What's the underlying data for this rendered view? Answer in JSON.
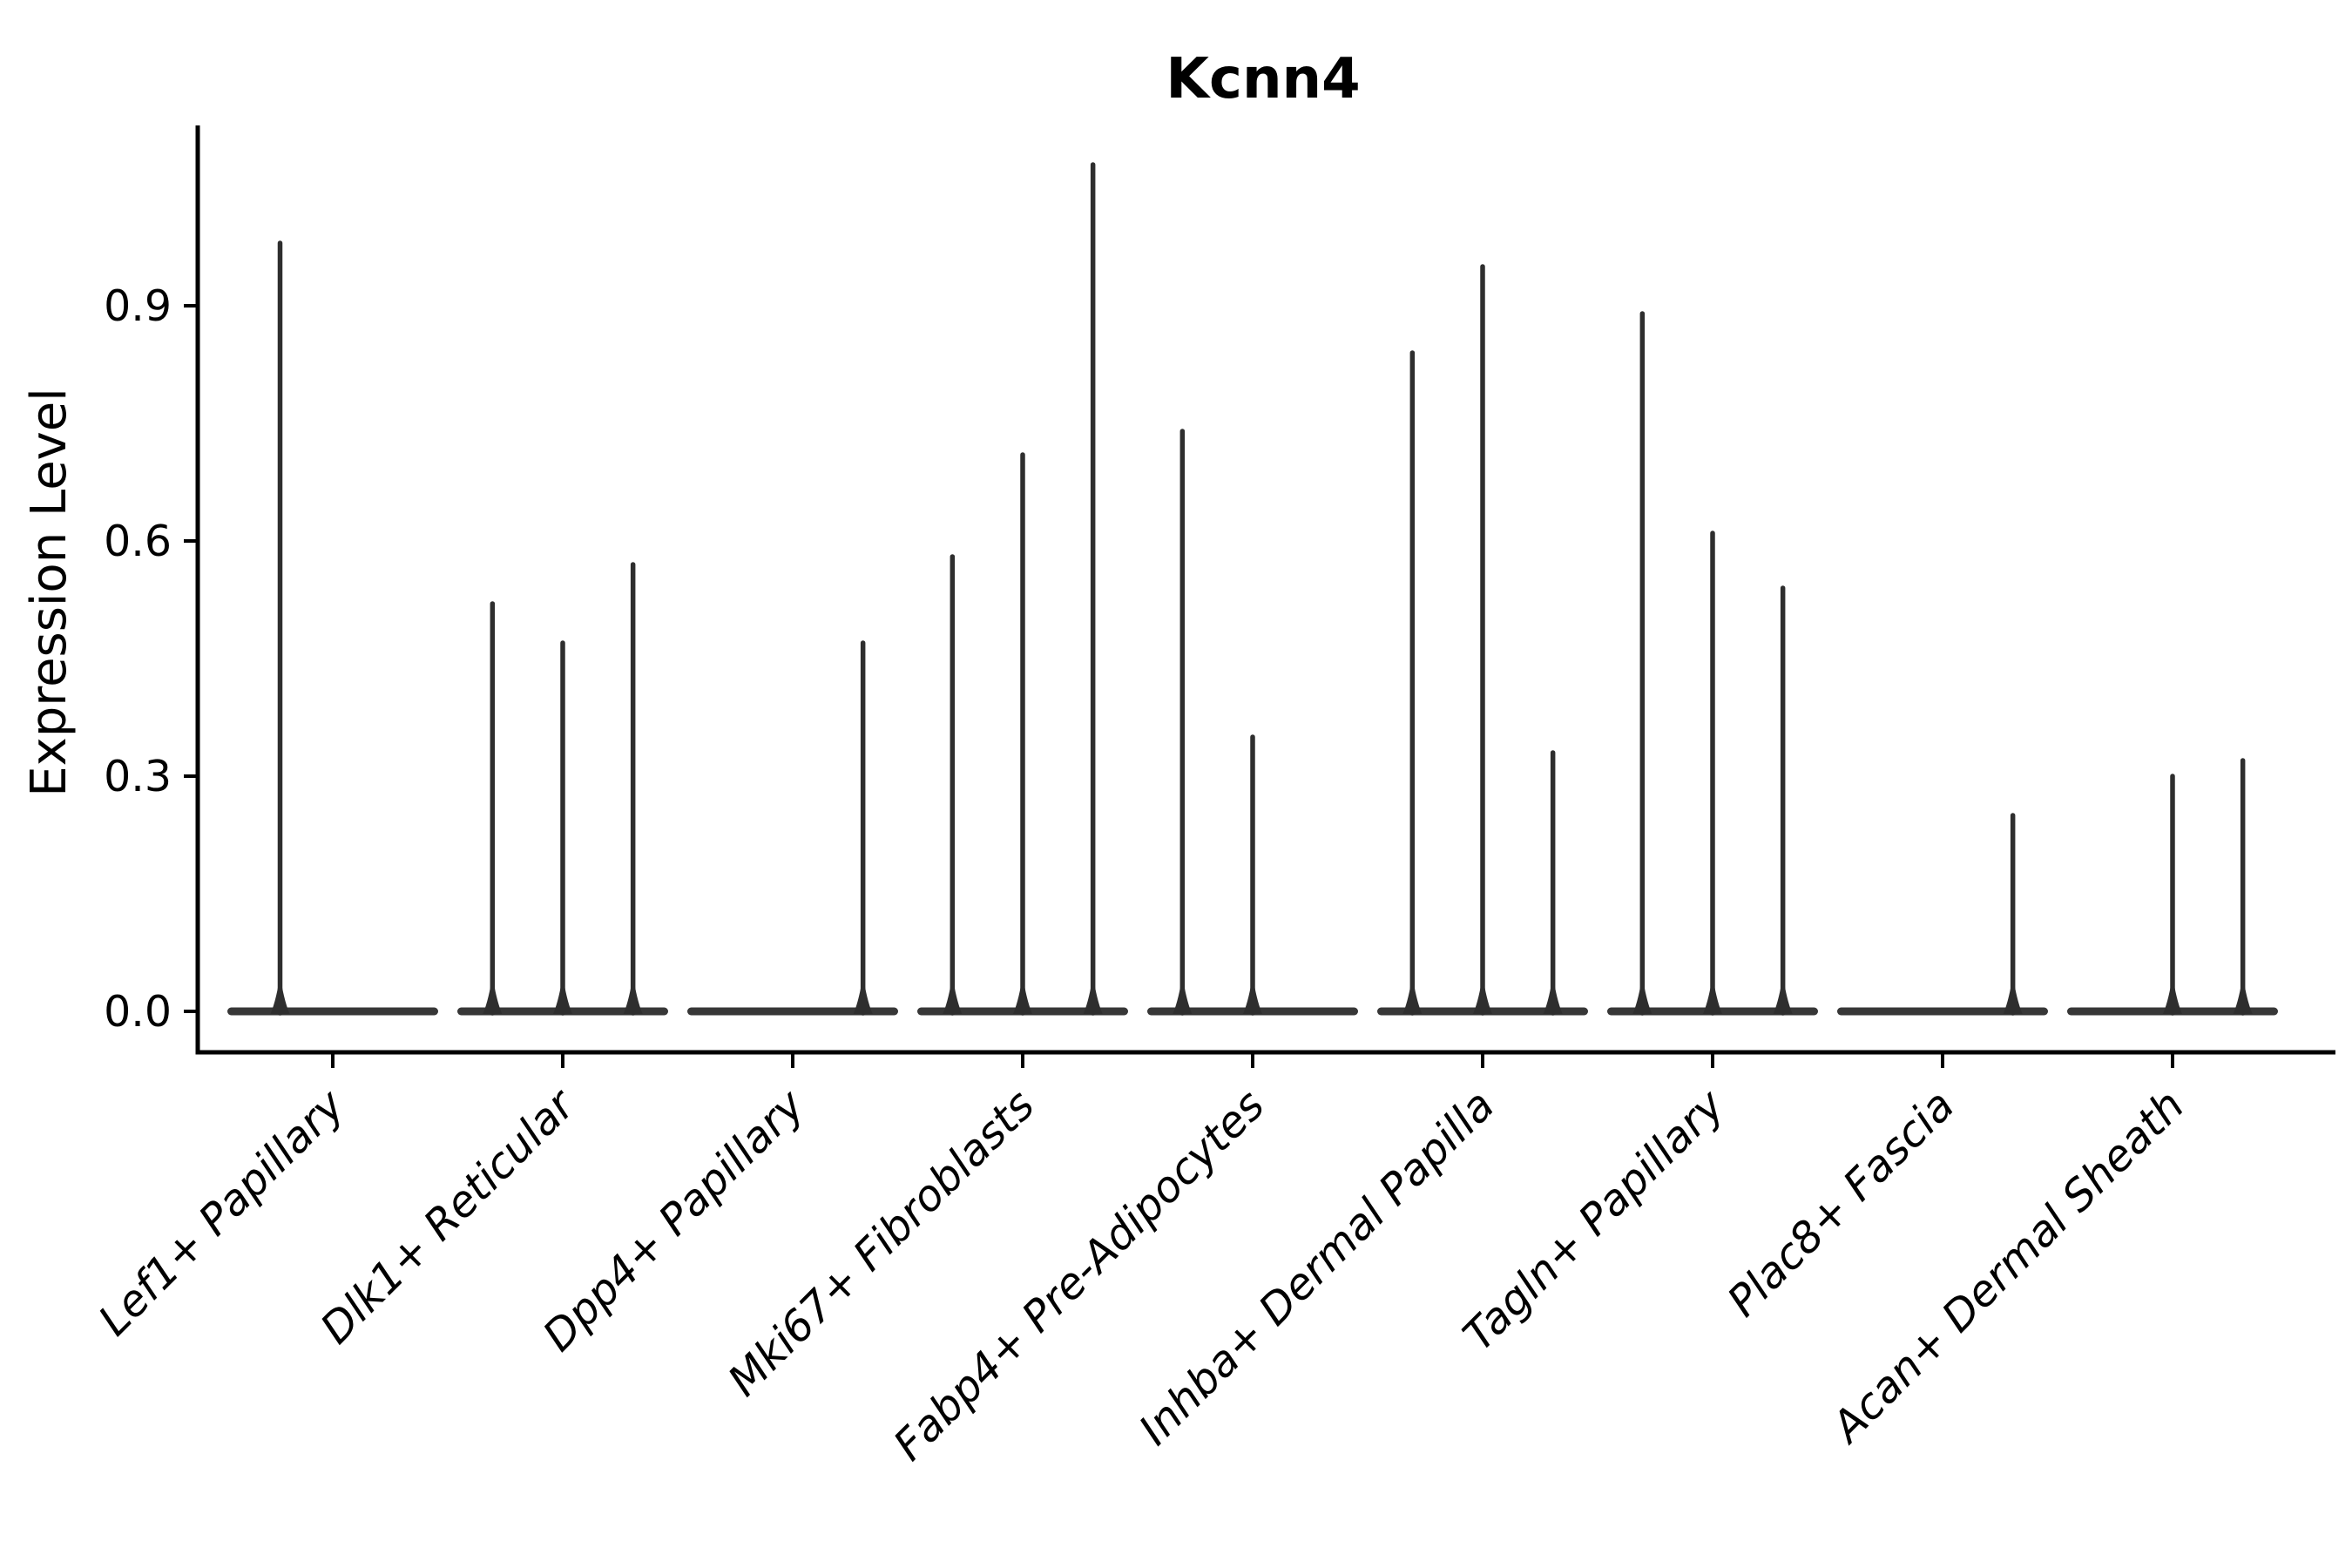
{
  "title": "Kcnn4",
  "axes": {
    "ylabel": "Expression Level",
    "ytick_labels": [
      "0.0",
      "0.3",
      "0.6",
      "0.9"
    ]
  },
  "chart_data": {
    "type": "violin",
    "title": "Kcnn4",
    "xlabel": "",
    "ylabel": "Expression Level",
    "ylim": [
      -0.052,
      1.13
    ],
    "yticks": [
      0.0,
      0.3,
      0.6,
      0.9
    ],
    "grid": false,
    "legend": "none",
    "note": "Single-cell expression violin plot; violins are near-flat at 0 with one thin density spike per non-zero violin. Each category holds up to 3 sub-violins.",
    "categories": [
      "Lef1+ Papillary",
      "Dlk1+ Reticular",
      "Dpp4+ Papillary",
      "Mki67+ Fibroblasts",
      "Fabp4+ Pre-Adipocytes",
      "Inhba+ Dermal Papilla",
      "Tagln+ Papillary",
      "Plac8+ Fascia",
      "Acan+ Dermal Sheath"
    ],
    "groups": [
      {
        "label": "Lef1+ Papillary",
        "n_violins": 2,
        "violins": [
          {
            "slot": 0,
            "peak": 0.98
          }
        ]
      },
      {
        "label": "Dlk1+ Reticular",
        "n_violins": 3,
        "violins": [
          {
            "slot": 0,
            "peak": 0.52
          },
          {
            "slot": 1,
            "peak": 0.47
          },
          {
            "slot": 2,
            "peak": 0.57
          }
        ]
      },
      {
        "label": "Dpp4+ Papillary",
        "n_violins": 3,
        "violins": [
          {
            "slot": 2,
            "peak": 0.47
          }
        ]
      },
      {
        "label": "Mki67+ Fibroblasts",
        "n_violins": 3,
        "violins": [
          {
            "slot": 0,
            "peak": 0.58
          },
          {
            "slot": 1,
            "peak": 0.71
          },
          {
            "slot": 2,
            "peak": 1.08
          }
        ]
      },
      {
        "label": "Fabp4+ Pre-Adipocytes",
        "n_violins": 3,
        "violins": [
          {
            "slot": 0,
            "peak": 0.74
          },
          {
            "slot": 1,
            "peak": 0.35
          }
        ]
      },
      {
        "label": "Inhba+ Dermal Papilla",
        "n_violins": 3,
        "violins": [
          {
            "slot": 0,
            "peak": 0.84
          },
          {
            "slot": 1,
            "peak": 0.95
          },
          {
            "slot": 2,
            "peak": 0.33
          }
        ]
      },
      {
        "label": "Tagln+ Papillary",
        "n_violins": 3,
        "violins": [
          {
            "slot": 0,
            "peak": 0.89
          },
          {
            "slot": 1,
            "peak": 0.61
          },
          {
            "slot": 2,
            "peak": 0.54
          }
        ]
      },
      {
        "label": "Plac8+ Fascia",
        "n_violins": 3,
        "violins": [
          {
            "slot": 2,
            "peak": 0.25
          }
        ]
      },
      {
        "label": "Acan+ Dermal Sheath",
        "n_violins": 3,
        "violins": [
          {
            "slot": 1,
            "peak": 0.3
          },
          {
            "slot": 2,
            "peak": 0.32
          }
        ]
      }
    ],
    "baseline_value": 0.0,
    "colors": {
      "violin": "#2e2e2e",
      "baseline": "#373737",
      "axis": "#000000",
      "background": "#ffffff"
    }
  }
}
